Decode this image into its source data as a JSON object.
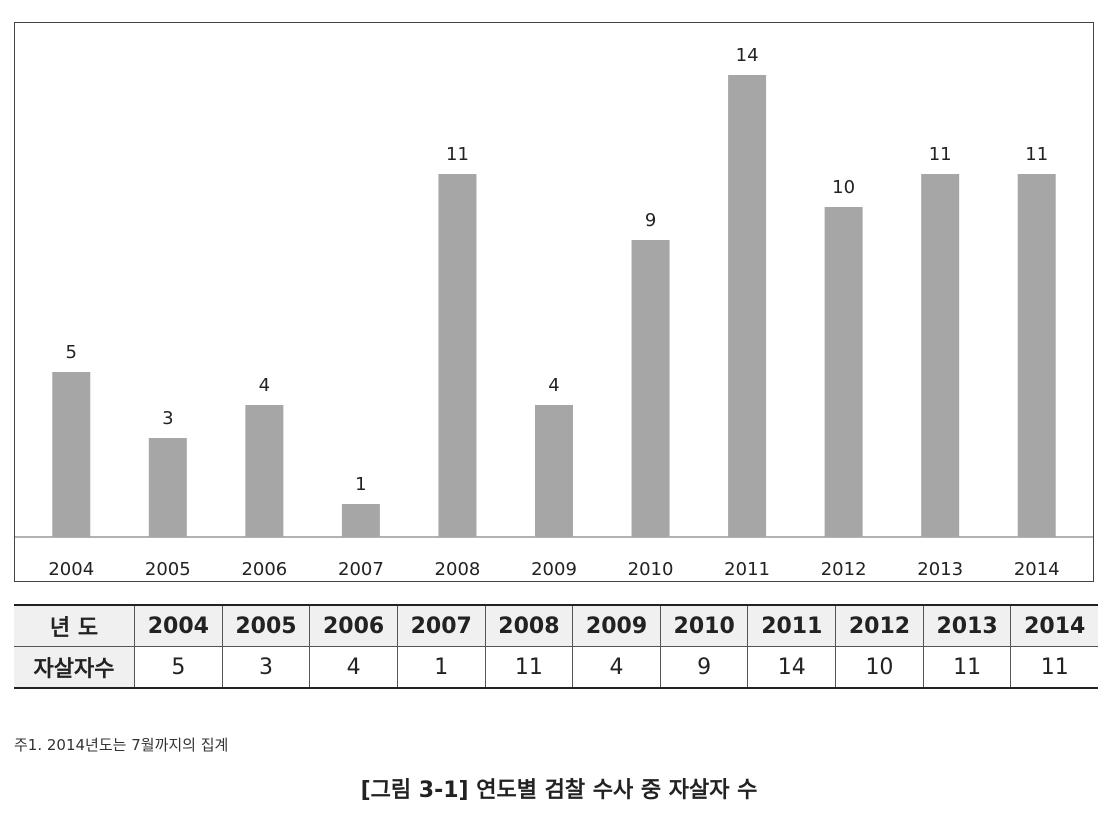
{
  "chart_data": {
    "type": "bar",
    "categories": [
      "2004",
      "2005",
      "2006",
      "2007",
      "2008",
      "2009",
      "2010",
      "2011",
      "2012",
      "2013",
      "2014"
    ],
    "values": [
      5,
      3,
      4,
      1,
      11,
      4,
      9,
      14,
      10,
      11,
      11
    ],
    "ylim": [
      0,
      14
    ],
    "grid": false,
    "legend": "none",
    "bar_color": "#a6a6a6"
  },
  "table": {
    "year_header": "년 도",
    "count_header": "자살자수",
    "years": [
      "2004",
      "2005",
      "2006",
      "2007",
      "2008",
      "2009",
      "2010",
      "2011",
      "2012",
      "2013",
      "2014"
    ],
    "counts": [
      "5",
      "3",
      "4",
      "1",
      "11",
      "4",
      "9",
      "14",
      "10",
      "11",
      "11"
    ]
  },
  "footnote": "주1. 2014년도는 7월까지의 집계",
  "caption": "[그림 3-1] 연도별 검찰 수사 중 자살자 수"
}
